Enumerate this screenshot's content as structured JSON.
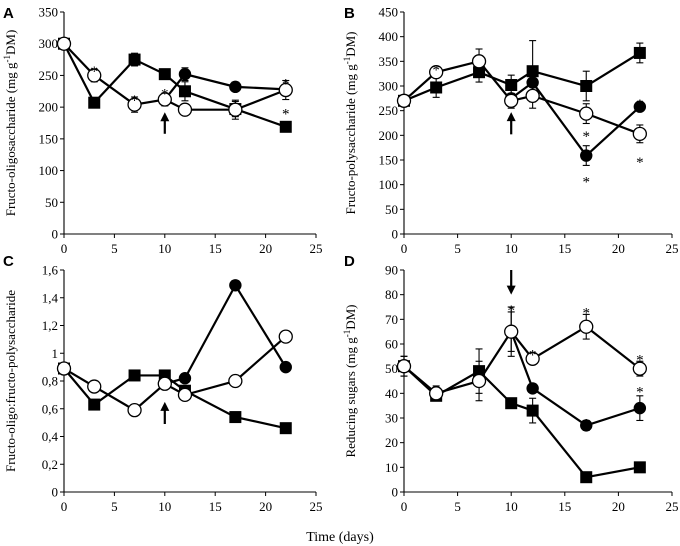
{
  "shared_xlabel": "Time (days)",
  "chart_data": [
    {
      "type": "line",
      "panel": "A",
      "ylabel": "Fructo-oligosaccharide (mg g-1DM)",
      "ylabel_parts": [
        "Fructo-oligosaccharide (mg g",
        "-1",
        "DM)"
      ],
      "xlim": [
        0,
        25
      ],
      "ylim": [
        0,
        350
      ],
      "xticks": [
        "0",
        "5",
        "10",
        "15",
        "20",
        "25"
      ],
      "yticks": [
        "0",
        "50",
        "100",
        "150",
        "200",
        "250",
        "300",
        "350"
      ],
      "series": [
        {
          "name": "filled-square",
          "marker": "square",
          "x": [
            0,
            3,
            7,
            10,
            12,
            17,
            22
          ],
          "y": [
            300,
            207,
            275,
            252,
            225,
            197,
            169
          ],
          "err": [
            0,
            0,
            10,
            8,
            15,
            12,
            5
          ]
        },
        {
          "name": "filled-circle",
          "marker": "filled-circle",
          "x": [
            10,
            12,
            17,
            22
          ],
          "y": [
            212,
            252,
            232,
            228
          ],
          "err": [
            0,
            10,
            0,
            0
          ]
        },
        {
          "name": "open-circle",
          "marker": "open-circle",
          "x": [
            0,
            3,
            7,
            10,
            12,
            17,
            22
          ],
          "y": [
            300,
            250,
            204,
            212,
            196,
            196,
            227
          ],
          "err": [
            0,
            10,
            12,
            10,
            0,
            15,
            15
          ]
        }
      ],
      "annotations": [
        {
          "type": "star",
          "text": "*",
          "x": 3,
          "y": 262
        },
        {
          "type": "star",
          "text": "*",
          "x": 7,
          "y": 216
        },
        {
          "type": "star",
          "text": "*",
          "x": 10,
          "y": 226
        },
        {
          "type": "star",
          "text": "*",
          "x": 22,
          "y": 242
        },
        {
          "type": "star",
          "text": "*",
          "x": 22,
          "y": 195
        },
        {
          "type": "arrow",
          "direction": "up",
          "x": 10,
          "y_from": 158,
          "y_to": 192
        }
      ]
    },
    {
      "type": "line",
      "panel": "B",
      "ylabel": "Fructo-polysaccharide (mg g-1DM)",
      "ylabel_parts": [
        "Fructo-polysaccharide (mg g",
        "-1",
        "DM)"
      ],
      "xlim": [
        0,
        25
      ],
      "ylim": [
        0,
        450
      ],
      "xticks": [
        "0",
        "5",
        "10",
        "15",
        "20",
        "25"
      ],
      "yticks": [
        "0",
        "50",
        "100",
        "150",
        "200",
        "250",
        "300",
        "350",
        "400",
        "450"
      ],
      "series": [
        {
          "name": "filled-square",
          "marker": "square",
          "x": [
            0,
            3,
            7,
            10,
            12,
            17,
            22
          ],
          "y": [
            270,
            297,
            328,
            302,
            330,
            300,
            367
          ],
          "err": [
            0,
            20,
            20,
            20,
            62,
            30,
            20
          ]
        },
        {
          "name": "filled-circle",
          "marker": "filled-circle",
          "x": [
            10,
            12,
            17,
            22
          ],
          "y": [
            275,
            307,
            159,
            258
          ],
          "err": [
            0,
            0,
            20,
            0
          ]
        },
        {
          "name": "open-circle",
          "marker": "open-circle",
          "x": [
            0,
            3,
            7,
            10,
            12,
            17,
            22
          ],
          "y": [
            270,
            328,
            350,
            270,
            280,
            244,
            203
          ],
          "err": [
            10,
            10,
            25,
            15,
            25,
            20,
            18
          ]
        }
      ],
      "annotations": [
        {
          "type": "star",
          "text": "*",
          "x": 3,
          "y": 340
        },
        {
          "type": "star",
          "text": "*",
          "x": 17,
          "y": 205
        },
        {
          "type": "star",
          "text": "*",
          "x": 17,
          "y": 112
        },
        {
          "type": "star",
          "text": "*",
          "x": 22,
          "y": 270
        },
        {
          "type": "star",
          "text": "*",
          "x": 22,
          "y": 152
        },
        {
          "type": "arrow",
          "direction": "up",
          "x": 10,
          "y_from": 202,
          "y_to": 247
        }
      ]
    },
    {
      "type": "line",
      "panel": "C",
      "ylabel": "Fructo-oligo:fructo-polysaccharide",
      "ylabel_parts": [
        "Fructo-oligo:fructo-polysaccharide",
        "",
        ""
      ],
      "xlim": [
        0,
        25
      ],
      "ylim": [
        0,
        1.6
      ],
      "xticks": [
        "0",
        "5",
        "10",
        "15",
        "20",
        "25"
      ],
      "yticks": [
        "0",
        "0,2",
        "0,4",
        "0,6",
        "0,8",
        "1",
        "1,2",
        "1,4",
        "1,6"
      ],
      "series": [
        {
          "name": "filled-square",
          "marker": "square",
          "x": [
            0,
            3,
            7,
            10,
            12,
            17,
            22
          ],
          "y": [
            0.89,
            0.63,
            0.84,
            0.84,
            0.73,
            0.54,
            0.46
          ],
          "err": [
            0,
            0,
            0,
            0,
            0,
            0,
            0
          ]
        },
        {
          "name": "filled-circle",
          "marker": "filled-circle",
          "x": [
            10,
            12,
            17,
            22
          ],
          "y": [
            0.78,
            0.82,
            1.49,
            0.9
          ],
          "err": [
            0,
            0,
            0,
            0
          ]
        },
        {
          "name": "open-circle",
          "marker": "open-circle",
          "x": [
            0,
            3,
            7,
            10,
            12,
            17,
            22
          ],
          "y": [
            0.89,
            0.76,
            0.59,
            0.78,
            0.7,
            0.8,
            1.12
          ],
          "err": [
            0,
            0,
            0,
            0,
            0,
            0,
            0
          ]
        }
      ],
      "annotations": [
        {
          "type": "arrow",
          "direction": "up",
          "x": 10,
          "y_from": 0.49,
          "y_to": 0.65
        }
      ]
    },
    {
      "type": "line",
      "panel": "D",
      "ylabel": "Reducing sugars (mg g-1DM)",
      "ylabel_parts": [
        "Reducing sugars (mg g",
        "-1",
        "DM)"
      ],
      "xlim": [
        0,
        25
      ],
      "ylim": [
        0,
        90
      ],
      "xticks": [
        "0",
        "5",
        "10",
        "15",
        "20",
        "25"
      ],
      "yticks": [
        "0",
        "10",
        "20",
        "30",
        "40",
        "50",
        "60",
        "70",
        "80",
        "90"
      ],
      "series": [
        {
          "name": "filled-square",
          "marker": "square",
          "x": [
            0,
            3,
            7,
            10,
            12,
            17,
            22
          ],
          "y": [
            51,
            39,
            49,
            36,
            33,
            6,
            10
          ],
          "err": [
            4,
            2,
            9,
            0,
            5,
            0,
            0
          ]
        },
        {
          "name": "filled-circle",
          "marker": "filled-circle",
          "x": [
            10,
            12,
            17,
            22
          ],
          "y": [
            65,
            42,
            27,
            34
          ],
          "err": [
            8,
            0,
            2,
            5
          ]
        },
        {
          "name": "open-circle",
          "marker": "open-circle",
          "x": [
            0,
            3,
            7,
            10,
            12,
            17,
            22
          ],
          "y": [
            51,
            40,
            45,
            65,
            54,
            67,
            50
          ],
          "err": [
            4,
            3,
            8,
            10,
            0,
            5,
            3
          ]
        }
      ],
      "annotations": [
        {
          "type": "star",
          "text": "*",
          "x": 10,
          "y": 75
        },
        {
          "type": "star",
          "text": "*",
          "x": 12,
          "y": 57
        },
        {
          "type": "star",
          "text": "*",
          "x": 17,
          "y": 74
        },
        {
          "type": "star",
          "text": "*",
          "x": 17,
          "y": 29
        },
        {
          "type": "star",
          "text": "*",
          "x": 22,
          "y": 55
        },
        {
          "type": "star",
          "text": "*",
          "x": 22,
          "y": 42
        },
        {
          "type": "arrow",
          "direction": "down",
          "x": 10,
          "y_from": 90,
          "y_to": 80
        }
      ]
    }
  ]
}
